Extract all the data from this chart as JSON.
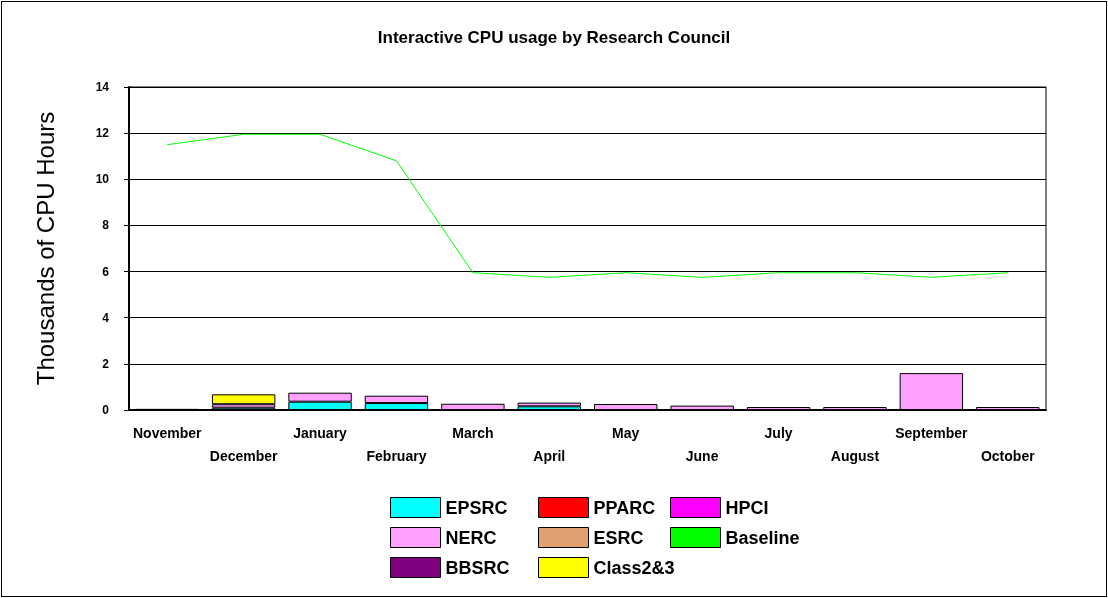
{
  "chart_data": {
    "type": "bar",
    "title": "Interactive CPU usage by Research Council",
    "ylabel": "Thousands of CPU Hours",
    "categories": [
      "November",
      "December",
      "January",
      "February",
      "March",
      "April",
      "May",
      "June",
      "July",
      "August",
      "September",
      "October"
    ],
    "stacked": true,
    "ylim": [
      0,
      14
    ],
    "yticks": [
      0,
      2,
      4,
      6,
      8,
      10,
      12,
      14
    ],
    "grid": "y",
    "legend": "bottom",
    "series": [
      {
        "name": "EPSRC",
        "color": "#00ffff",
        "values": [
          null,
          0.1,
          0.36,
          0.3,
          null,
          0.16,
          null,
          null,
          null,
          null,
          null,
          null
        ]
      },
      {
        "name": "PPARC",
        "color": "#ff0000",
        "values": [
          null,
          null,
          null,
          null,
          null,
          null,
          null,
          null,
          null,
          null,
          null,
          null
        ]
      },
      {
        "name": "HPCI",
        "color": "#ff00ff",
        "values": [
          null,
          null,
          null,
          null,
          null,
          null,
          null,
          null,
          null,
          null,
          null,
          null
        ]
      },
      {
        "name": "NERC",
        "color": "#ffa0ff",
        "values": [
          null,
          0.15,
          0.39,
          0.32,
          0.27,
          0.16,
          0.26,
          0.19,
          0.13,
          0.13,
          1.6,
          0.13
        ]
      },
      {
        "name": "ESRC",
        "color": "#e0a070",
        "values": [
          null,
          null,
          null,
          null,
          null,
          null,
          null,
          null,
          null,
          null,
          null,
          null
        ]
      },
      {
        "name": "Baseline",
        "type": "line",
        "color": "#00ff00",
        "values": [
          11.5,
          11.95,
          11.95,
          10.8,
          5.95,
          5.75,
          5.95,
          5.75,
          5.95,
          5.95,
          5.75,
          5.95
        ]
      },
      {
        "name": "BBSRC",
        "color": "#800080",
        "values": [
          0.05,
          null,
          null,
          null,
          null,
          null,
          null,
          null,
          null,
          null,
          null,
          null
        ]
      },
      {
        "name": "Class2&3",
        "color": "#ffff00",
        "values": [
          null,
          0.43,
          null,
          null,
          null,
          null,
          null,
          null,
          null,
          null,
          null,
          null
        ]
      }
    ]
  }
}
